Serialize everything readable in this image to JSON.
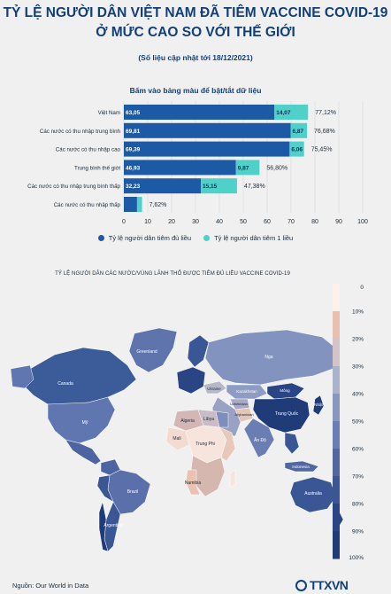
{
  "header": {
    "title_line1": "TỶ LỆ NGƯỜI DÂN VIỆT NAM ĐÃ TIÊM VACCINE COVID-19",
    "title_line2": "Ở MỨC CAO SO VỚI THẾ GIỚI",
    "update_note": "(Số liệu cập nhật tới 18/12/2021)",
    "bar_hint": "Bấm vào bảng màu để bật/tắt dữ liệu"
  },
  "chart_data": [
    {
      "type": "bar",
      "orientation": "horizontal",
      "stacked": true,
      "categories": [
        "Việt Nam",
        "Các nước có thu nhập trung bình",
        "Các nước có thu nhập cao",
        "Trung bình thế giới",
        "Các nước có thu nhập trung bình thấp",
        "Các nước có thu nhập thấp"
      ],
      "series": [
        {
          "name": "Tỷ lệ người dân tiêm đủ liều",
          "color": "#1c5aa6",
          "values": [
            63.05,
            69.81,
            69.39,
            46.93,
            32.23,
            5.52
          ],
          "labels": [
            "63,05",
            "69,81",
            "69,39",
            "46,93",
            "32,23",
            ""
          ]
        },
        {
          "name": "Tỷ lệ người dân tiêm 1 liều",
          "color": "#4fd0c8",
          "values": [
            14.07,
            6.87,
            6.06,
            9.87,
            15.15,
            2.1
          ],
          "labels": [
            "14,07",
            "6,87",
            "6,06",
            "9,87",
            "15,15",
            ""
          ]
        }
      ],
      "totals": [
        "77,12%",
        "76,68%",
        "75,45%",
        "56,80%",
        "47,38%",
        "7,62%"
      ],
      "x_ticks": [
        "0",
        "10",
        "20",
        "30",
        "40",
        "50",
        "60",
        "70",
        "80",
        "90",
        "100"
      ],
      "xlim": [
        0,
        100
      ],
      "legend_position": "bottom"
    },
    {
      "type": "choropleth-map",
      "title": "TỶ LỆ NGƯỜI DÂN CÁC NƯỚC/VÙNG LÃNH THỔ ĐƯỢC TIÊM ĐỦ LIỀU VACCINE COVID-19",
      "colorbar_ticks": [
        "0",
        "10%",
        "20%",
        "30%",
        "40%",
        "50%",
        "60%",
        "70%",
        "80%",
        "90%",
        "100%"
      ],
      "colorbar_colors": [
        "#fff0ea",
        "#e9bfb0",
        "#d2c4c8",
        "#aab2cc",
        "#8797c0",
        "#6a7eb4",
        "#52679f",
        "#3a5695",
        "#2a4585",
        "#1f3b78"
      ],
      "labels": [
        "Greenland",
        "Canada",
        "Mỹ",
        "Brazil",
        "Argentina",
        "Nga",
        "Trung Quốc",
        "Ấn Độ",
        "Australia",
        "Algeria",
        "Libya",
        "Mali",
        "Trung Phi",
        "Namibia",
        "Ukraine",
        "Kazakhstan",
        "Uzbekistan",
        "Afghanistan",
        "Mông",
        "Nhật",
        "Indonesia"
      ]
    }
  ],
  "legend": {
    "full_dose": "Tỷ lệ người dân tiêm đủ liều",
    "one_dose": "Tỷ lệ người dân tiêm 1 liều",
    "full_color": "#1c5aa6",
    "one_color": "#4fd0c8"
  },
  "footer": {
    "source": "Nguồn: Our World in Data",
    "logo": "TTXVN"
  }
}
